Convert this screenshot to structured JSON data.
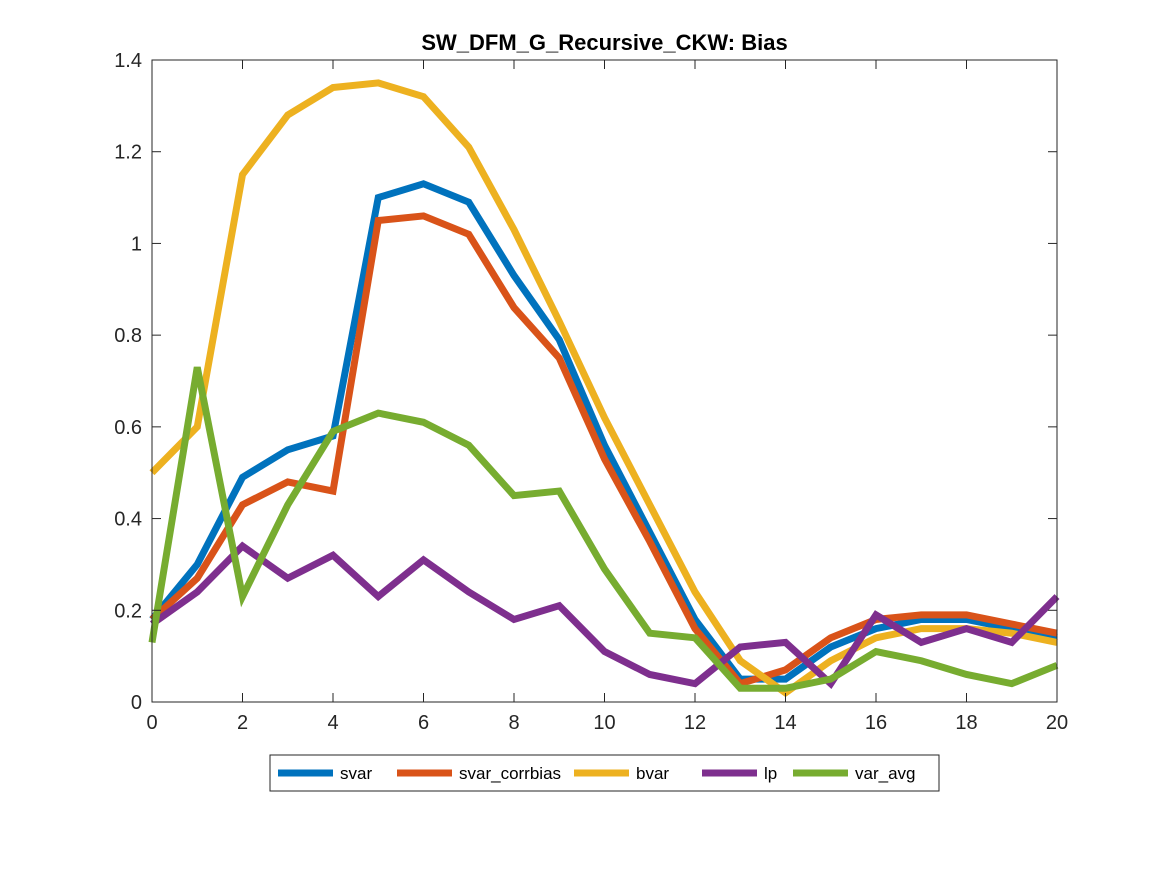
{
  "chart_data": {
    "type": "line",
    "title": "SW_DFM_G_Recursive_CKW: Bias",
    "xlabel": "",
    "ylabel": "",
    "xlim": [
      0,
      20
    ],
    "ylim": [
      0,
      1.4
    ],
    "xticks": [
      0,
      2,
      4,
      6,
      8,
      10,
      12,
      14,
      16,
      18,
      20
    ],
    "yticks": [
      0,
      0.2,
      0.4,
      0.6,
      0.8,
      1,
      1.2,
      1.4
    ],
    "xtick_labels": [
      "0",
      "2",
      "4",
      "6",
      "8",
      "10",
      "12",
      "14",
      "16",
      "18",
      "20"
    ],
    "ytick_labels": [
      "0",
      "0.2",
      "0.4",
      "0.6",
      "0.8",
      "1",
      "1.2",
      "1.4"
    ],
    "grid": false,
    "legend_position": "bottom-outside",
    "x": [
      0,
      1,
      2,
      3,
      4,
      5,
      6,
      7,
      8,
      9,
      10,
      11,
      12,
      13,
      14,
      15,
      16,
      17,
      18,
      19,
      20
    ],
    "series": [
      {
        "name": "svar",
        "color": "#0072BD",
        "values": [
          0.18,
          0.3,
          0.49,
          0.55,
          0.58,
          1.1,
          1.13,
          1.09,
          0.93,
          0.79,
          0.56,
          0.37,
          0.18,
          0.05,
          0.05,
          0.12,
          0.16,
          0.18,
          0.18,
          0.16,
          0.14
        ]
      },
      {
        "name": "svar_corrbias",
        "color": "#D95319",
        "values": [
          0.18,
          0.27,
          0.43,
          0.48,
          0.46,
          1.05,
          1.06,
          1.02,
          0.86,
          0.75,
          0.53,
          0.35,
          0.16,
          0.04,
          0.07,
          0.14,
          0.18,
          0.19,
          0.19,
          0.17,
          0.15
        ]
      },
      {
        "name": "bvar",
        "color": "#EDB120",
        "values": [
          0.5,
          0.6,
          1.15,
          1.28,
          1.34,
          1.35,
          1.32,
          1.21,
          1.03,
          0.83,
          0.62,
          0.43,
          0.24,
          0.09,
          0.02,
          0.09,
          0.14,
          0.16,
          0.16,
          0.15,
          0.13
        ]
      },
      {
        "name": "lp",
        "color": "#7E2F8E",
        "values": [
          0.17,
          0.24,
          0.34,
          0.27,
          0.32,
          0.23,
          0.31,
          0.24,
          0.18,
          0.21,
          0.11,
          0.06,
          0.04,
          0.12,
          0.13,
          0.04,
          0.19,
          0.13,
          0.16,
          0.13,
          0.23
        ]
      },
      {
        "name": "var_avg",
        "color": "#77AC30",
        "values": [
          0.13,
          0.73,
          0.23,
          0.43,
          0.59,
          0.63,
          0.61,
          0.56,
          0.45,
          0.46,
          0.29,
          0.15,
          0.14,
          0.03,
          0.03,
          0.05,
          0.11,
          0.09,
          0.06,
          0.04,
          0.08
        ]
      }
    ]
  }
}
